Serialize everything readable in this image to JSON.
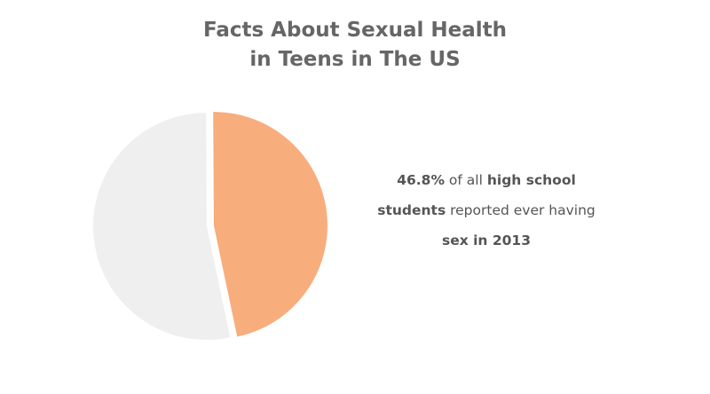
{
  "title": {
    "line1": "Facts About Sexual Health",
    "line2": "in Teens in The US"
  },
  "caption": {
    "stat": "46.8%",
    "text1": " of all ",
    "bold1": "high school",
    "bold2": "students",
    "text2": " reported ever having",
    "bold3": "sex in 2013"
  },
  "chart_data": {
    "type": "pie",
    "title": "",
    "slices": [
      {
        "label": "",
        "value": 46.8,
        "color": "#f8ad7c",
        "exploded": true
      },
      {
        "label": "",
        "value": 53.2,
        "color": "#efefef",
        "exploded": false
      }
    ]
  }
}
